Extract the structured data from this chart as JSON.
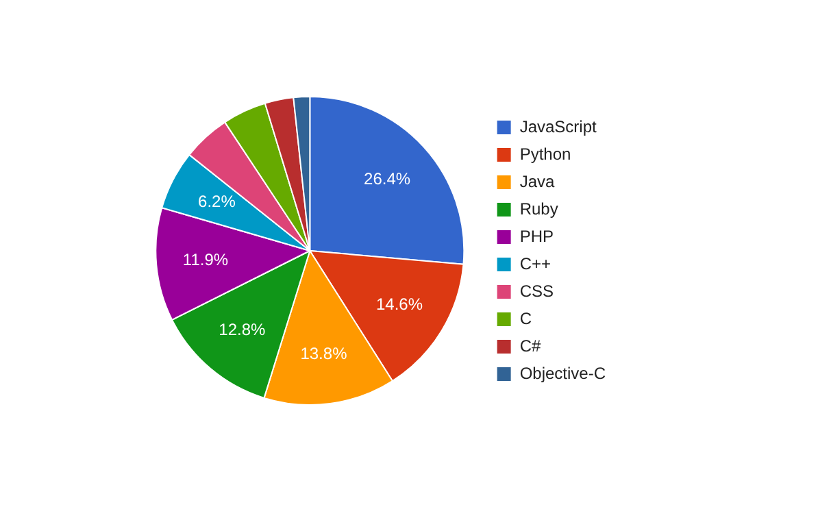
{
  "chart_data": {
    "type": "pie",
    "categories": [
      "JavaScript",
      "Python",
      "Java",
      "Ruby",
      "PHP",
      "C++",
      "CSS",
      "C",
      "C#",
      "Objective-C"
    ],
    "values": [
      26.4,
      14.6,
      13.8,
      12.8,
      11.9,
      6.2,
      5.0,
      4.6,
      3.0,
      1.7
    ],
    "colors": [
      "#3366cc",
      "#dc3912",
      "#ff9900",
      "#109618",
      "#990099",
      "#0099c6",
      "#dd4477",
      "#66aa00",
      "#b82e2e",
      "#316395"
    ],
    "value_labels": [
      "26.4%",
      "14.6%",
      "13.8%",
      "12.8%",
      "11.9%",
      "6.2%",
      null,
      null,
      null,
      null
    ],
    "legend": "right"
  }
}
